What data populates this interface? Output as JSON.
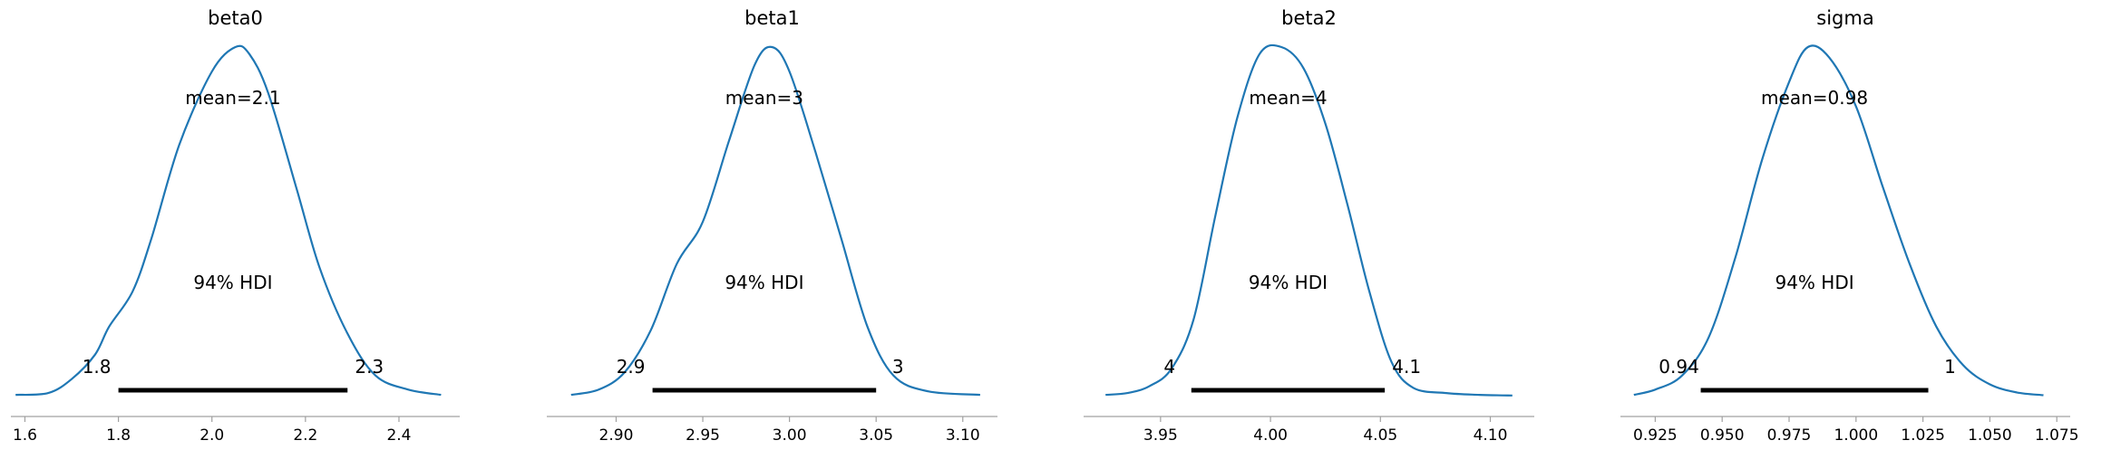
{
  "chart_data": [
    {
      "type": "area",
      "title": "beta0",
      "mean_label": "mean=2.1",
      "hdi_label": "94% HDI",
      "hdi_low": 1.8,
      "hdi_high": 2.29,
      "hdi_low_label": "1.8",
      "hdi_high_label": "2.3",
      "xlim": [
        1.57,
        2.53
      ],
      "xticks": [
        1.6,
        1.8,
        2.0,
        2.2,
        2.4
      ],
      "xtick_labels": [
        "1.6",
        "1.8",
        "2.0",
        "2.2",
        "2.4"
      ],
      "x": [
        1.58,
        1.65,
        1.7,
        1.75,
        1.78,
        1.83,
        1.87,
        1.93,
        2.0,
        2.05,
        2.08,
        2.12,
        2.18,
        2.23,
        2.29,
        2.35,
        2.42,
        2.49
      ],
      "density": [
        0.005,
        0.01,
        0.05,
        0.12,
        0.2,
        0.3,
        0.45,
        0.72,
        0.93,
        1.0,
        0.98,
        0.87,
        0.6,
        0.37,
        0.18,
        0.06,
        0.02,
        0.005
      ]
    },
    {
      "type": "area",
      "title": "beta1",
      "mean_label": "mean=3",
      "hdi_label": "94% HDI",
      "hdi_low": 2.921,
      "hdi_high": 3.05,
      "hdi_low_label": "2.9",
      "hdi_high_label": "3",
      "xlim": [
        2.86,
        3.12
      ],
      "xticks": [
        2.9,
        2.95,
        3.0,
        3.05,
        3.1
      ],
      "xtick_labels": [
        "2.90",
        "2.95",
        "3.00",
        "3.05",
        "3.10"
      ],
      "x": [
        2.874,
        2.89,
        2.905,
        2.92,
        2.935,
        2.95,
        2.965,
        2.98,
        2.99,
        3.0,
        3.015,
        3.03,
        3.045,
        3.06,
        3.08,
        3.11
      ],
      "density": [
        0.005,
        0.02,
        0.07,
        0.19,
        0.38,
        0.5,
        0.73,
        0.95,
        1.0,
        0.93,
        0.7,
        0.45,
        0.2,
        0.06,
        0.015,
        0.005
      ]
    },
    {
      "type": "area",
      "title": "beta2",
      "mean_label": "mean=4",
      "hdi_label": "94% HDI",
      "hdi_low": 3.964,
      "hdi_high": 4.052,
      "hdi_low_label": "4",
      "hdi_high_label": "4.1",
      "xlim": [
        3.915,
        4.12
      ],
      "xticks": [
        3.95,
        4.0,
        4.05,
        4.1
      ],
      "xtick_labels": [
        "3.95",
        "4.00",
        "4.05",
        "4.10"
      ],
      "x": [
        3.925,
        3.935,
        3.945,
        3.955,
        3.965,
        3.975,
        3.985,
        3.995,
        4.005,
        4.015,
        4.025,
        4.035,
        4.045,
        4.055,
        4.065,
        4.08,
        4.095,
        4.11
      ],
      "density": [
        0.005,
        0.01,
        0.03,
        0.08,
        0.22,
        0.52,
        0.8,
        0.98,
        1.0,
        0.94,
        0.78,
        0.55,
        0.3,
        0.1,
        0.025,
        0.01,
        0.005,
        0.003
      ]
    },
    {
      "type": "area",
      "title": "sigma",
      "mean_label": "mean=0.98",
      "hdi_label": "94% HDI",
      "hdi_low": 0.942,
      "hdi_high": 1.027,
      "hdi_low_label": "0.94",
      "hdi_high_label": "1",
      "xlim": [
        0.912,
        1.08
      ],
      "xticks": [
        0.925,
        0.95,
        0.975,
        1.0,
        1.025,
        1.05,
        1.075
      ],
      "xtick_labels": [
        "0.925",
        "0.950",
        "0.975",
        "1.000",
        "1.025",
        "1.050",
        "1.075"
      ],
      "x": [
        0.917,
        0.925,
        0.935,
        0.945,
        0.955,
        0.965,
        0.975,
        0.982,
        0.99,
        1.0,
        1.01,
        1.02,
        1.03,
        1.04,
        1.05,
        1.06,
        1.07
      ],
      "density": [
        0.005,
        0.02,
        0.06,
        0.17,
        0.4,
        0.68,
        0.9,
        1.0,
        0.97,
        0.83,
        0.6,
        0.38,
        0.2,
        0.09,
        0.035,
        0.012,
        0.004
      ]
    }
  ],
  "colors": {
    "density_line": "#1f77b4",
    "hdi_bar": "#000000",
    "axis": "#a0a0a0",
    "text": "#000000"
  }
}
